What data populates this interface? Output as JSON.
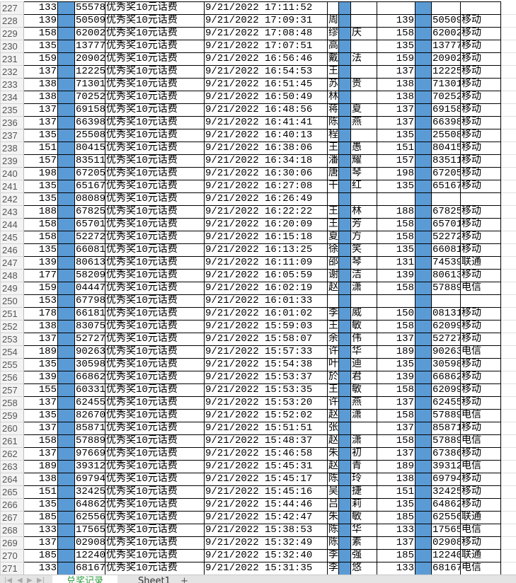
{
  "sheet": {
    "colors": {
      "highlight_column": "#5b9bd5",
      "active_tab_text": "#2e9a3d"
    },
    "rows": [
      [
        "227",
        "133",
        "55578",
        "优秀奖10元话费",
        "9/21/2022 17:11:52",
        "",
        "",
        "",
        "",
        ""
      ],
      [
        "228",
        "139",
        "50509",
        "优秀奖10元话费",
        "9/21/2022 17:09:31",
        "周",
        "",
        "139",
        "50509",
        "移动"
      ],
      [
        "229",
        "158",
        "62002",
        "优秀奖10元话费",
        "9/21/2022 17:08:48",
        "缪",
        "庆",
        "158",
        "62002",
        "移动"
      ],
      [
        "230",
        "135",
        "13777",
        "优秀奖10元话费",
        "9/21/2022 17:07:51",
        "高",
        "",
        "135",
        "13777",
        "移动"
      ],
      [
        "231",
        "159",
        "20902",
        "优秀奖10元话费",
        "9/21/2022 16:56:46",
        "戴",
        "法",
        "159",
        "20902",
        "移动"
      ],
      [
        "232",
        "137",
        "12225",
        "优秀奖10元话费",
        "9/21/2022 16:54:53",
        "王",
        "",
        "137",
        "12225",
        "移动"
      ],
      [
        "233",
        "138",
        "71301",
        "优秀奖10元话费",
        "9/21/2022 16:51:45",
        "苏",
        "贵",
        "138",
        "71301",
        "移动"
      ],
      [
        "234",
        "138",
        "70252",
        "优秀奖10元话费",
        "9/21/2022 16:50:49",
        "林",
        "",
        "138",
        "70252",
        "移动"
      ],
      [
        "235",
        "137",
        "69158",
        "优秀奖10元话费",
        "9/21/2022 16:48:56",
        "蒋",
        "夏",
        "137",
        "69158",
        "移动"
      ],
      [
        "236",
        "137",
        "66398",
        "优秀奖10元话费",
        "9/21/2022 16:41:41",
        "陈",
        "燕",
        "137",
        "66398",
        "移动"
      ],
      [
        "237",
        "135",
        "25508",
        "优秀奖10元话费",
        "9/21/2022 16:40:13",
        "程",
        "",
        "135",
        "25508",
        "移动"
      ],
      [
        "238",
        "151",
        "80415",
        "优秀奖10元话费",
        "9/21/2022 16:38:06",
        "王",
        "愚",
        "151",
        "80415",
        "移动"
      ],
      [
        "239",
        "157",
        "83511",
        "优秀奖10元话费",
        "9/21/2022 16:34:18",
        "潘",
        "耀",
        "157",
        "83511",
        "移动"
      ],
      [
        "240",
        "198",
        "67205",
        "优秀奖10元话费",
        "9/21/2022 16:30:06",
        "唐",
        "琴",
        "198",
        "67205",
        "移动"
      ],
      [
        "241",
        "135",
        "65167",
        "优秀奖10元话费",
        "9/21/2022 16:27:08",
        "干",
        "红",
        "135",
        "65167",
        "移动"
      ],
      [
        "242",
        "135",
        "08089",
        "优秀奖10元话费",
        "9/21/2022 16:26:49",
        "",
        "",
        "",
        "",
        ""
      ],
      [
        "243",
        "188",
        "67825",
        "优秀奖10元话费",
        "9/21/2022 16:22:22",
        "王",
        "林",
        "188",
        "67825",
        "移动"
      ],
      [
        "244",
        "158",
        "65701",
        "优秀奖10元话费",
        "9/21/2022 16:20:09",
        "王",
        "芳",
        "158",
        "65701",
        "移动"
      ],
      [
        "245",
        "158",
        "52272",
        "优秀奖10元话费",
        "9/21/2022 16:15:18",
        "夏",
        "方",
        "158",
        "52272",
        "移动"
      ],
      [
        "246",
        "135",
        "66081",
        "优秀奖10元话费",
        "9/21/2022 16:13:25",
        "徐",
        "笑",
        "135",
        "66081",
        "移动"
      ],
      [
        "247",
        "139",
        "80613",
        "优秀奖10元话费",
        "9/21/2022 16:11:09",
        "邵",
        "琴",
        "131",
        "74539",
        "联通"
      ],
      [
        "248",
        "177",
        "58209",
        "优秀奖10元话费",
        "9/21/2022 16:05:59",
        "谢",
        "洁",
        "139",
        "80613",
        "移动"
      ],
      [
        "249",
        "159",
        "04447",
        "优秀奖10元话费",
        "9/21/2022 16:02:19",
        "赵",
        "潇",
        "158",
        "57889",
        "电信"
      ],
      [
        "250",
        "153",
        "67798",
        "优秀奖10元话费",
        "9/21/2022 16:01:33",
        "",
        "",
        "",
        "",
        ""
      ],
      [
        "251",
        "178",
        "66181",
        "优秀奖10元话费",
        "9/21/2022 16:01:02",
        "李",
        "威",
        "150",
        "08131",
        "移动"
      ],
      [
        "252",
        "138",
        "83075",
        "优秀奖10元话费",
        "9/21/2022 15:59:03",
        "王",
        "敏",
        "158",
        "62099",
        "移动"
      ],
      [
        "253",
        "137",
        "52727",
        "优秀奖10元话费",
        "9/21/2022 15:58:07",
        "余",
        "伟",
        "137",
        "52727",
        "移动"
      ],
      [
        "254",
        "189",
        "90263",
        "优秀奖10元话费",
        "9/21/2022 15:57:33",
        "许",
        "华",
        "189",
        "90263",
        "电信"
      ],
      [
        "255",
        "135",
        "30598",
        "优秀奖10元话费",
        "9/21/2022 15:54:38",
        "叶",
        "迪",
        "135",
        "30598",
        "移动"
      ],
      [
        "256",
        "139",
        "66862",
        "优秀奖10元话费",
        "9/21/2022 15:53:37",
        "於",
        "君",
        "139",
        "66862",
        "移动"
      ],
      [
        "257",
        "155",
        "60331",
        "优秀奖10元话费",
        "9/21/2022 15:53:35",
        "王",
        "敏",
        "158",
        "62099",
        "移动"
      ],
      [
        "258",
        "137",
        "62455",
        "优秀奖10元话费",
        "9/21/2022 15:53:20",
        "许",
        "燕",
        "137",
        "62455",
        "移动"
      ],
      [
        "259",
        "135",
        "82670",
        "优秀奖10元话费",
        "9/21/2022 15:52:02",
        "赵",
        "潇",
        "158",
        "57889",
        "电信"
      ],
      [
        "260",
        "137",
        "85871",
        "优秀奖10元话费",
        "9/21/2022 15:51:51",
        "张",
        "",
        "137",
        "85871",
        "移动"
      ],
      [
        "261",
        "158",
        "57889",
        "优秀奖10元话费",
        "9/21/2022 15:48:37",
        "赵",
        "潇",
        "158",
        "57889",
        "电信"
      ],
      [
        "262",
        "137",
        "97669",
        "优秀奖10元话费",
        "9/21/2022 15:46:58",
        "朱",
        "初",
        "137",
        "67386",
        "移动"
      ],
      [
        "263",
        "189",
        "39312",
        "优秀奖10元话费",
        "9/21/2022 15:45:31",
        "赵",
        "青",
        "189",
        "39312",
        "电信"
      ],
      [
        "264",
        "138",
        "69794",
        "优秀奖10元话费",
        "9/21/2022 15:45:17",
        "陈",
        "玲",
        "138",
        "69794",
        "移动"
      ],
      [
        "265",
        "151",
        "32425",
        "优秀奖10元话费",
        "9/21/2022 15:45:16",
        "吴",
        "捷",
        "151",
        "32425",
        "移动"
      ],
      [
        "266",
        "135",
        "64862",
        "优秀奖10元话费",
        "9/21/2022 15:44:46",
        "吕",
        "莉",
        "135",
        "64862",
        "移动"
      ],
      [
        "267",
        "185",
        "62556",
        "优秀奖10元话费",
        "9/21/2022 15:42:47",
        "朱",
        "敏",
        "185",
        "62556",
        "联通"
      ],
      [
        "268",
        "133",
        "17565",
        "优秀奖10元话费",
        "9/21/2022 15:38:53",
        "陈",
        "华",
        "133",
        "17565",
        "电信"
      ],
      [
        "269",
        "137",
        "02908",
        "优秀奖10元话费",
        "9/21/2022 15:32:49",
        "陈",
        "素",
        "137",
        "02908",
        "移动"
      ],
      [
        "270",
        "185",
        "12240",
        "优秀奖10元话费",
        "9/21/2022 15:32:40",
        "李",
        "强",
        "185",
        "12240",
        "联通"
      ],
      [
        "271",
        "133",
        "68167",
        "优秀奖10元话费",
        "9/21/2022 15:31:35",
        "李",
        "悠",
        "133",
        "68167",
        "电信"
      ]
    ]
  },
  "tabs": {
    "nav_icons": [
      "first-sheet-icon",
      "prev-sheet-icon",
      "next-sheet-icon",
      "last-sheet-icon"
    ],
    "items": [
      {
        "label": "兑奖记录导出",
        "active": true
      },
      {
        "label": "Sheet1",
        "active": false
      }
    ],
    "add_label": "+"
  }
}
